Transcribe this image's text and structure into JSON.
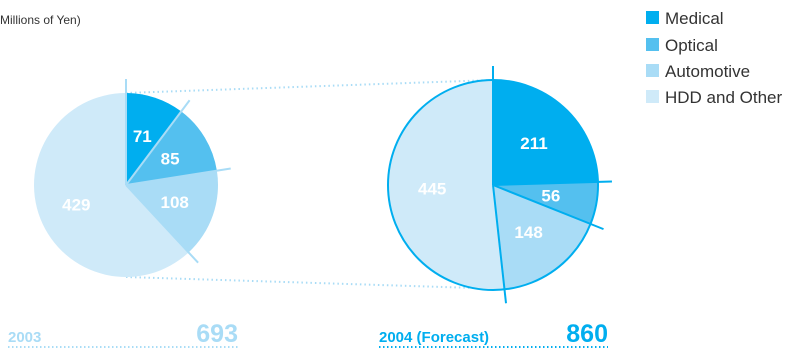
{
  "unit_label": "Millions of Yen)",
  "colors": {
    "medical": "#00aeef",
    "optical": "#54c0ef",
    "automotive": "#a9dcf6",
    "hdd_other": "#cfeaf9",
    "year_2003": "#a9dcf6",
    "year_2004": "#00aeef"
  },
  "chart_data": {
    "type": "pie",
    "title": "",
    "legend": {
      "placement": "top-right",
      "entries": [
        "Medical",
        "Optical",
        "Automotive",
        "HDD and Other"
      ]
    },
    "categories": [
      "Medical",
      "Optical",
      "Automotive",
      "HDD and Other"
    ],
    "pies": [
      {
        "name": "2003",
        "year_label": "2003",
        "total": 693,
        "values": [
          71,
          85,
          108,
          429
        ]
      },
      {
        "name": "2004 (Forecast)",
        "year_label": "2004 (Forecast)",
        "total": 860,
        "values": [
          211,
          56,
          148,
          445
        ]
      }
    ]
  }
}
